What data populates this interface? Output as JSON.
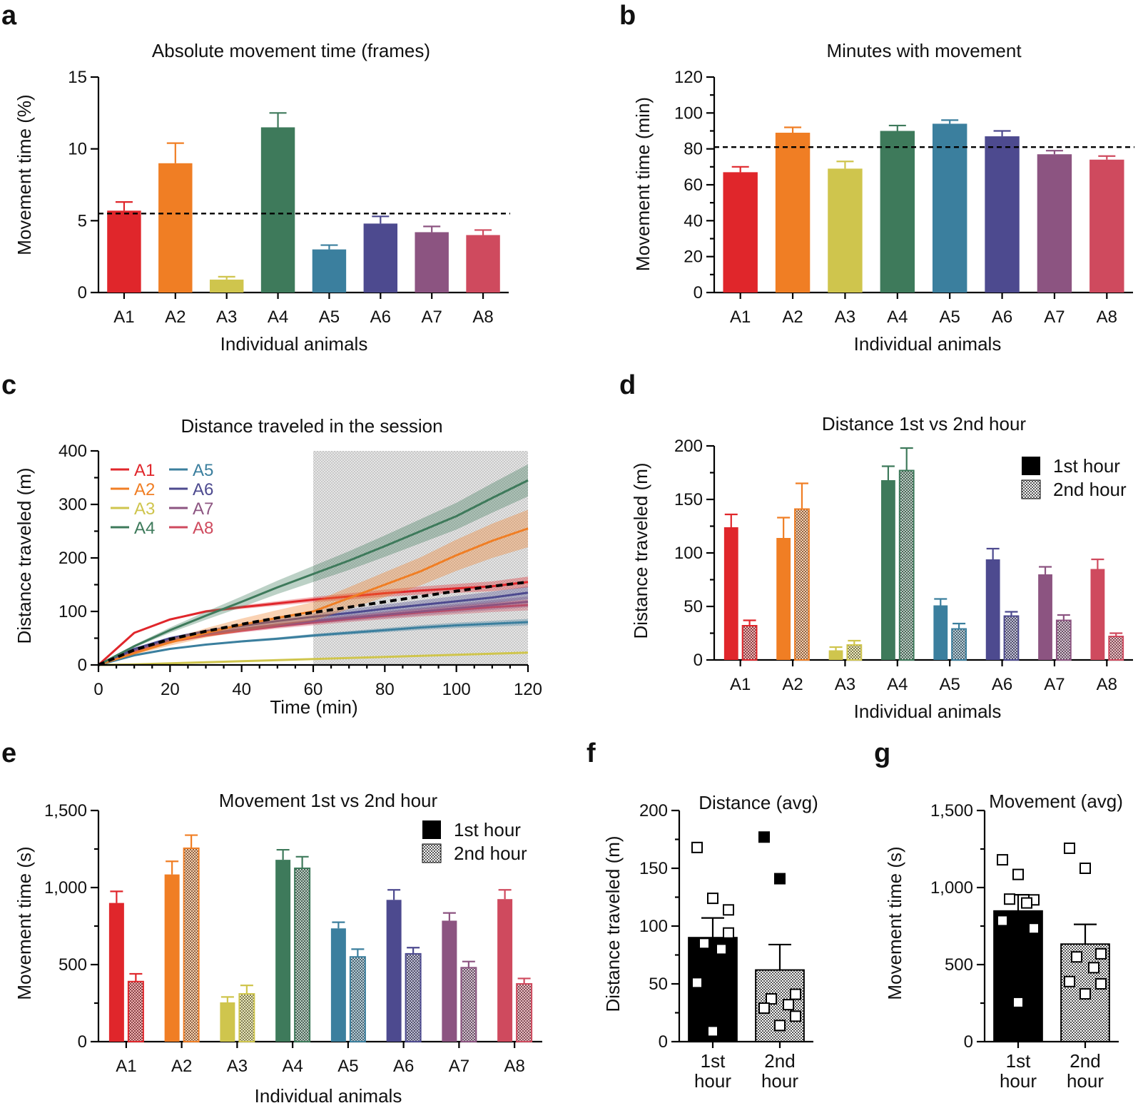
{
  "colors": {
    "A1": "#e0262b",
    "A2": "#f07e24",
    "A3": "#cfc54d",
    "A4": "#3e7a5b",
    "A5": "#3b7f9e",
    "A6": "#4d4a8f",
    "A7": "#8c5481",
    "A8": "#cf4a5e",
    "black": "#000000",
    "grey_band": "#d9d9d9"
  },
  "chart_data": [
    {
      "panel": "a",
      "type": "bar",
      "title": "Absolute movement time (frames)",
      "xlabel": "Individual animals",
      "ylabel": "Movement time (%)",
      "categories": [
        "A1",
        "A2",
        "A3",
        "A4",
        "A5",
        "A6",
        "A7",
        "A8"
      ],
      "values": [
        5.7,
        9.0,
        0.9,
        11.5,
        3.0,
        4.8,
        4.2,
        4.0
      ],
      "errors": [
        0.6,
        1.4,
        0.2,
        1.0,
        0.3,
        0.5,
        0.4,
        0.35
      ],
      "reference_line": 5.5,
      "ylim": [
        0,
        15
      ],
      "yticks": [
        "0",
        "5",
        "10",
        "15"
      ]
    },
    {
      "panel": "b",
      "type": "bar",
      "title": "Minutes with movement",
      "xlabel": "Individual animals",
      "ylabel": "Movement time (min)",
      "categories": [
        "A1",
        "A2",
        "A3",
        "A4",
        "A5",
        "A6",
        "A7",
        "A8"
      ],
      "values": [
        67,
        89,
        69,
        90,
        94,
        87,
        77,
        74
      ],
      "errors": [
        3,
        3,
        4,
        3,
        2,
        3,
        2,
        2
      ],
      "reference_line": 81,
      "ylim": [
        0,
        120
      ],
      "yticks": [
        "0",
        "20",
        "40",
        "60",
        "80",
        "100",
        "120"
      ]
    },
    {
      "panel": "c",
      "type": "line",
      "title": "Distance traveled in the session",
      "xlabel": "Time (min)",
      "ylabel": "Distance traveled (m)",
      "xlim": [
        0,
        120
      ],
      "ylim": [
        0,
        400
      ],
      "xticks": [
        "0",
        "20",
        "40",
        "60",
        "80",
        "100",
        "120"
      ],
      "yticks": [
        "0",
        "100",
        "200",
        "300",
        "400"
      ],
      "shaded_interval": [
        60,
        120
      ],
      "x": [
        0,
        10,
        20,
        30,
        40,
        50,
        60,
        70,
        80,
        90,
        100,
        110,
        120
      ],
      "series": [
        {
          "name": "A1",
          "values": [
            0,
            60,
            85,
            100,
            108,
            115,
            122,
            128,
            134,
            139,
            143,
            147,
            155
          ],
          "band": 10
        },
        {
          "name": "A2",
          "values": [
            0,
            22,
            42,
            60,
            75,
            88,
            100,
            125,
            150,
            175,
            205,
            232,
            255
          ],
          "band": 35
        },
        {
          "name": "A3",
          "values": [
            0,
            1,
            3,
            5,
            7,
            9,
            11,
            13,
            15,
            17,
            19,
            21,
            23
          ],
          "band": 2
        },
        {
          "name": "A4",
          "values": [
            0,
            35,
            65,
            92,
            118,
            145,
            170,
            195,
            222,
            250,
            278,
            312,
            345
          ],
          "band": 30
        },
        {
          "name": "A5",
          "values": [
            0,
            18,
            30,
            38,
            44,
            49,
            55,
            60,
            65,
            70,
            74,
            77,
            80
          ],
          "band": 6
        },
        {
          "name": "A6",
          "values": [
            0,
            30,
            50,
            63,
            73,
            82,
            90,
            97,
            105,
            112,
            119,
            126,
            135
          ],
          "band": 12
        },
        {
          "name": "A7",
          "values": [
            0,
            28,
            46,
            58,
            67,
            75,
            82,
            88,
            94,
            100,
            106,
            112,
            118
          ],
          "band": 10
        },
        {
          "name": "A8",
          "values": [
            0,
            26,
            43,
            55,
            64,
            72,
            79,
            86,
            92,
            98,
            103,
            108,
            112
          ],
          "band": 10
        },
        {
          "name": "Mean",
          "values": [
            0,
            28,
            48,
            63,
            76,
            88,
            98,
            108,
            118,
            128,
            138,
            147,
            155
          ],
          "band": 0
        }
      ],
      "legend": [
        "A1",
        "A2",
        "A3",
        "A4",
        "A5",
        "A6",
        "A7",
        "A8"
      ]
    },
    {
      "panel": "d",
      "type": "bar",
      "title": "Distance 1st vs 2nd hour",
      "xlabel": "Individual animals",
      "ylabel": "Distance traveled (m)",
      "categories": [
        "A1",
        "A2",
        "A3",
        "A4",
        "A5",
        "A6",
        "A7",
        "A8"
      ],
      "series": [
        {
          "name": "1st hour",
          "values": [
            124,
            114,
            9,
            168,
            51,
            94,
            80,
            85
          ],
          "errors": [
            12,
            19,
            3,
            13,
            6,
            10,
            7,
            9
          ]
        },
        {
          "name": "2nd hour",
          "values": [
            32,
            141,
            14,
            177,
            29,
            41,
            37,
            22
          ],
          "errors": [
            5,
            24,
            4,
            21,
            5,
            4,
            5,
            3
          ]
        }
      ],
      "legend": [
        "1st hour",
        "2nd hour"
      ],
      "ylim": [
        0,
        200
      ],
      "yticks": [
        "0",
        "50",
        "100",
        "150",
        "200"
      ]
    },
    {
      "panel": "e",
      "type": "bar",
      "title": "Movement 1st vs 2nd hour",
      "xlabel": "Individual animals",
      "ylabel": "Movement time (s)",
      "categories": [
        "A1",
        "A2",
        "A3",
        "A4",
        "A5",
        "A6",
        "A7",
        "A8"
      ],
      "series": [
        {
          "name": "1st hour",
          "values": [
            900,
            1085,
            255,
            1180,
            735,
            920,
            785,
            925
          ],
          "errors": [
            75,
            85,
            35,
            65,
            40,
            65,
            50,
            60
          ]
        },
        {
          "name": "2nd hour",
          "values": [
            390,
            1255,
            310,
            1125,
            550,
            570,
            480,
            375
          ],
          "errors": [
            50,
            85,
            55,
            75,
            50,
            40,
            40,
            35
          ]
        }
      ],
      "legend": [
        "1st hour",
        "2nd hour"
      ],
      "ylim": [
        0,
        1500
      ],
      "yticks": [
        "0",
        "500",
        "1,000",
        "1,500"
      ]
    },
    {
      "panel": "f",
      "type": "bar",
      "title": "Distance (avg)",
      "ylabel": "Distance traveled (m)",
      "categories": [
        "1st hour",
        "2nd hour"
      ],
      "values": [
        90,
        62
      ],
      "errors": [
        17,
        22
      ],
      "points": [
        [
          168,
          124,
          114,
          85,
          80,
          51,
          94,
          9
        ],
        [
          177,
          141,
          41,
          37,
          32,
          29,
          22,
          14
        ]
      ],
      "ylim": [
        0,
        200
      ],
      "yticks": [
        "0",
        "50",
        "100",
        "150",
        "200"
      ]
    },
    {
      "panel": "g",
      "type": "bar",
      "title": "Movement (avg)",
      "ylabel": "Movement time (s)",
      "categories": [
        "1st hour",
        "2nd hour"
      ],
      "values": [
        848,
        633
      ],
      "errors": [
        105,
        128
      ],
      "points": [
        [
          1180,
          1085,
          920,
          925,
          900,
          785,
          735,
          255
        ],
        [
          1255,
          1125,
          570,
          550,
          480,
          390,
          375,
          310
        ]
      ],
      "ylim": [
        0,
        1500
      ],
      "yticks": [
        "0",
        "500",
        "1,000",
        "1,500"
      ]
    }
  ],
  "panel_labels": {
    "a": "a",
    "b": "b",
    "c": "c",
    "d": "d",
    "e": "e",
    "f": "f",
    "g": "g"
  },
  "cat_labels": {
    "f": [
      [
        "1st",
        "hour"
      ],
      [
        "2nd",
        "hour"
      ]
    ],
    "g": [
      [
        "1st",
        "hour"
      ],
      [
        "2nd",
        "hour"
      ]
    ]
  }
}
